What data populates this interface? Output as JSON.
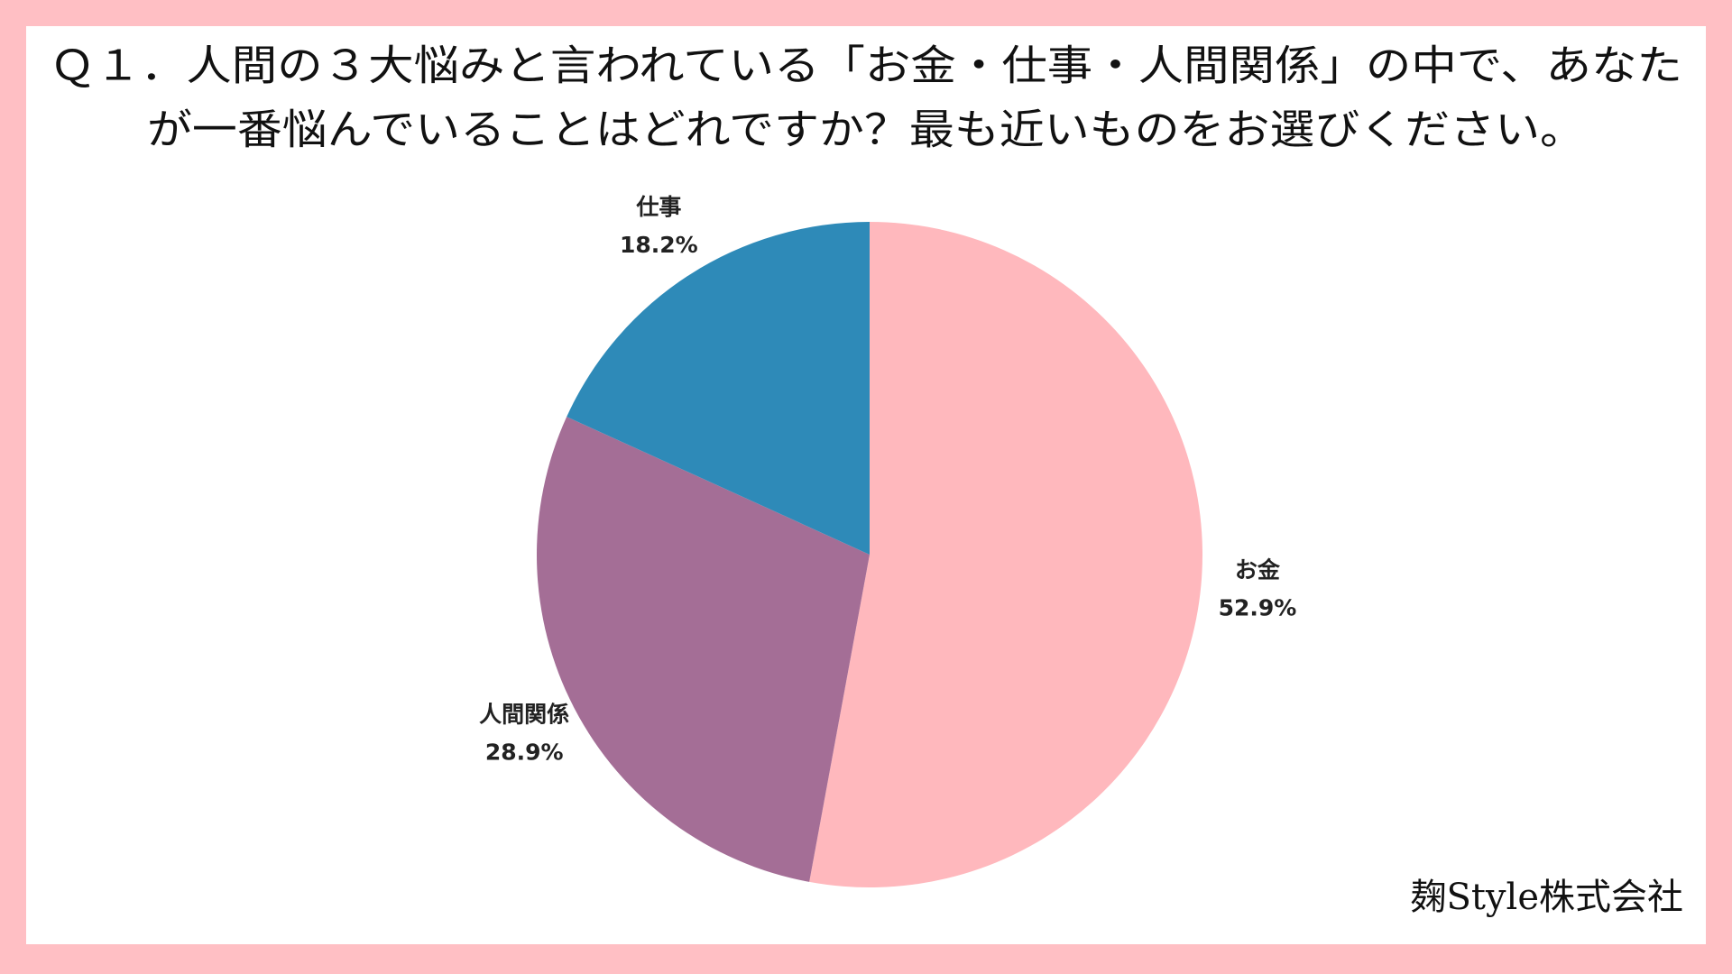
{
  "chart_data": {
    "type": "pie",
    "title": [
      "Ｑ１．人間の３大悩みと言われている「お金・仕事・人間関係」の中で、あなた",
      "が一番悩んでいることはどれですか？最も近いものをお選びください。"
    ],
    "categories": [
      "お金",
      "人間関係",
      "仕事"
    ],
    "values": [
      52.9,
      28.9,
      18.2
    ],
    "value_labels": [
      "52.9%",
      "28.9%",
      "18.2%"
    ],
    "colors": [
      "#ffb8bd",
      "#a46e96",
      "#2e8ab8"
    ],
    "source": "麹Style株式会社"
  }
}
